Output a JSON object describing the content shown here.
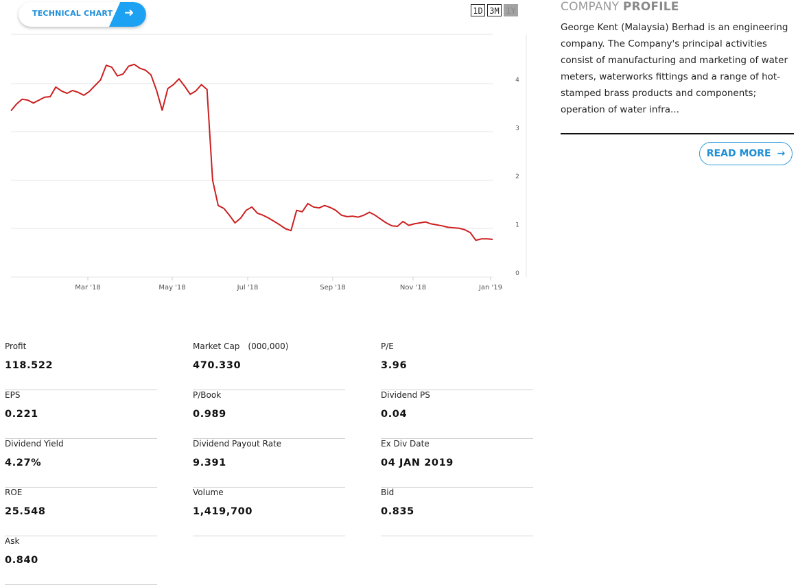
{
  "technical_chart": {
    "label": "TECHNICAL CHART",
    "arrow_icon": "arrow-right-icon"
  },
  "ranges": [
    {
      "label": "1D",
      "active": false
    },
    {
      "label": "3M",
      "active": false
    },
    {
      "label": "1Y",
      "active": true
    }
  ],
  "chart_data": {
    "type": "line",
    "color": "#cc1f1f",
    "x_ticks": [
      "Mar '18",
      "May '18",
      "Jul '18",
      "Sep '18",
      "Nov '18",
      "Jan '19"
    ],
    "y_ticks": [
      "0",
      "1",
      "2",
      "3",
      "4"
    ],
    "ylim": [
      0,
      5
    ],
    "series": [
      {
        "values": [
          3.44,
          3.58,
          3.68,
          3.66,
          3.6,
          3.66,
          3.72,
          3.73,
          3.93,
          3.85,
          3.8,
          3.86,
          3.82,
          3.76,
          3.84,
          3.96,
          4.08,
          4.38,
          4.34,
          4.16,
          4.2,
          4.36,
          4.4,
          4.32,
          4.28,
          4.18,
          3.86,
          3.45,
          3.9,
          3.98,
          4.1,
          3.95,
          3.78,
          3.85,
          3.98,
          3.88,
          2.0,
          1.48,
          1.42,
          1.28,
          1.12,
          1.22,
          1.38,
          1.45,
          1.32,
          1.28,
          1.22,
          1.15,
          1.08,
          1.0,
          0.96,
          1.38,
          1.35,
          1.52,
          1.45,
          1.43,
          1.48,
          1.44,
          1.38,
          1.28,
          1.25,
          1.26,
          1.24,
          1.28,
          1.34,
          1.28,
          1.2,
          1.12,
          1.06,
          1.05,
          1.15,
          1.07,
          1.1,
          1.12,
          1.14,
          1.1,
          1.08,
          1.06,
          1.03,
          1.02,
          1.01,
          0.98,
          0.92,
          0.76,
          0.79,
          0.79,
          0.78
        ]
      }
    ]
  },
  "profile": {
    "title_light": "COMPANY",
    "title_bold": "PROFILE",
    "text": "George Kent (Malaysia) Berhad is an engineering company. The Company's principal activities consist of manufacturing and marketing of water meters, waterworks fittings and a range of hot-stamped brass products and components; operation of water infra...",
    "read_more": "READ MORE",
    "read_more_icon": "arrow-right-icon"
  },
  "stats": [
    {
      "label": "Profit",
      "unit": "",
      "value": "118.522"
    },
    {
      "label": "Market Cap",
      "unit": "(000,000)",
      "value": "470.330"
    },
    {
      "label": "P/E",
      "unit": "",
      "value": "3.96"
    },
    {
      "label": "EPS",
      "unit": "",
      "value": "0.221"
    },
    {
      "label": "P/Book",
      "unit": "",
      "value": "0.989"
    },
    {
      "label": "Dividend PS",
      "unit": "",
      "value": "0.04"
    },
    {
      "label": "Dividend Yield",
      "unit": "",
      "value": "4.27%"
    },
    {
      "label": "Dividend Payout Rate",
      "unit": "",
      "value": "9.391"
    },
    {
      "label": "Ex Div Date",
      "unit": "",
      "value": "04 JAN 2019"
    },
    {
      "label": "ROE",
      "unit": "",
      "value": "25.548"
    },
    {
      "label": "Volume",
      "unit": "",
      "value": "1,419,700"
    },
    {
      "label": "Bid",
      "unit": "",
      "value": "0.835"
    },
    {
      "label": "Ask",
      "unit": "",
      "value": "0.840"
    }
  ]
}
